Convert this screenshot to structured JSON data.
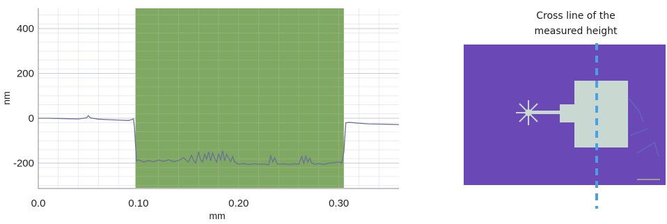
{
  "chart_data": {
    "type": "line",
    "title": "",
    "xlabel": "mm",
    "ylabel": "nm",
    "xlim": [
      0.0,
      0.36
    ],
    "ylim": [
      -310,
      490
    ],
    "x_ticks": [
      "0.0",
      "0.10",
      "0.20",
      "0.30"
    ],
    "x_tick_values": [
      0.0,
      0.1,
      0.2,
      0.3
    ],
    "y_ticks": [
      "400",
      "200",
      "0",
      "-200"
    ],
    "y_tick_values": [
      400,
      200,
      0,
      -200
    ],
    "grid": true,
    "highlight_region": {
      "x_start": 0.097,
      "x_end": 0.305,
      "color": "#7fa862"
    },
    "series": [
      {
        "color": "#6b6f9a",
        "x": [
          0.0,
          0.01,
          0.02,
          0.03,
          0.04,
          0.048,
          0.05,
          0.052,
          0.06,
          0.07,
          0.08,
          0.09,
          0.093,
          0.095,
          0.096,
          0.098,
          0.1,
          0.105,
          0.11,
          0.115,
          0.12,
          0.125,
          0.13,
          0.135,
          0.14,
          0.145,
          0.15,
          0.153,
          0.155,
          0.157,
          0.16,
          0.162,
          0.164,
          0.166,
          0.168,
          0.17,
          0.172,
          0.174,
          0.176,
          0.178,
          0.18,
          0.182,
          0.184,
          0.186,
          0.188,
          0.19,
          0.192,
          0.194,
          0.196,
          0.198,
          0.2,
          0.205,
          0.21,
          0.215,
          0.22,
          0.225,
          0.23,
          0.232,
          0.234,
          0.236,
          0.238,
          0.24,
          0.245,
          0.25,
          0.255,
          0.26,
          0.263,
          0.265,
          0.267,
          0.269,
          0.271,
          0.273,
          0.276,
          0.28,
          0.285,
          0.29,
          0.295,
          0.3,
          0.303,
          0.305,
          0.307,
          0.31,
          0.32,
          0.33,
          0.34,
          0.35,
          0.36
        ],
        "y": [
          0,
          0,
          -1,
          -2,
          -3,
          2,
          12,
          2,
          -4,
          -6,
          -8,
          -10,
          -6,
          -3,
          -40,
          -190,
          -185,
          -195,
          -188,
          -194,
          -186,
          -192,
          -185,
          -193,
          -188,
          -176,
          -195,
          -165,
          -188,
          -200,
          -152,
          -185,
          -195,
          -160,
          -183,
          -150,
          -190,
          -155,
          -178,
          -195,
          -160,
          -185,
          -145,
          -190,
          -160,
          -178,
          -192,
          -170,
          -195,
          -200,
          -205,
          -202,
          -206,
          -203,
          -205,
          -204,
          -208,
          -168,
          -195,
          -175,
          -200,
          -205,
          -203,
          -206,
          -203,
          -205,
          -170,
          -200,
          -168,
          -195,
          -178,
          -200,
          -205,
          -202,
          -206,
          -200,
          -198,
          -195,
          -200,
          -150,
          -20,
          -18,
          -22,
          -25,
          -26,
          -27,
          -28
        ]
      }
    ]
  },
  "caption": {
    "line1": "Cross line of the",
    "line2": "measured height"
  },
  "sample_image": {
    "background_color": "#6a48b6",
    "device_color": "#c9d9d1",
    "cross_line_color": "#4aa0e6",
    "scale_bar_text": ""
  }
}
